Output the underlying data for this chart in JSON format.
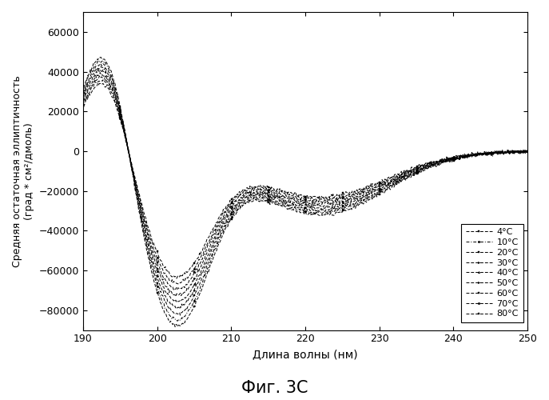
{
  "title": "Фиг. 3C",
  "xlabel": "Длина волны (нм)",
  "ylabel": "Средняя остаточная эллиптичность\n(град * см²/дмоль)",
  "xlim": [
    190,
    250
  ],
  "ylim": [
    -90000,
    70000
  ],
  "yticks": [
    -80000,
    -60000,
    -40000,
    -20000,
    0,
    20000,
    40000,
    60000
  ],
  "xticks": [
    190,
    200,
    210,
    220,
    230,
    240,
    250
  ],
  "temperatures": [
    "4°C",
    "10°C",
    "20°C",
    "30°C",
    "40°C",
    "50°C",
    "60°C",
    "70°C",
    "80°C"
  ],
  "background_color": "#ffffff",
  "line_color": "#000000",
  "n_curves": 9,
  "peak_wl": 193.0,
  "peak_max_amp": 55000,
  "trough_wl": 202.5,
  "trough_min_amp": -85000,
  "trough_sigma": 4.5,
  "shoulder_wl": 222,
  "shoulder_amp": -32000,
  "shoulder_sigma": 9,
  "temp_spread": 0.28
}
